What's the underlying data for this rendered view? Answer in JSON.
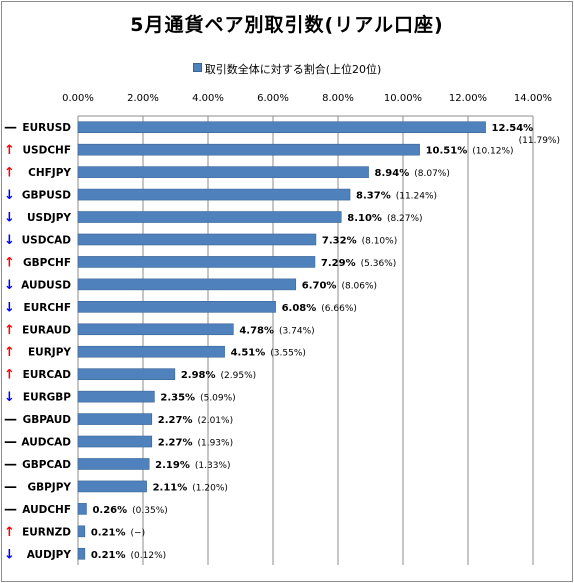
{
  "chart_data": {
    "type": "bar",
    "orientation": "horizontal",
    "title": "5月通貨ペア別取引数(リアル口座)",
    "legend": "取引数全体に対する割合(上位20位)",
    "legend_position": "top",
    "xlim": [
      0,
      14
    ],
    "xticks": [
      "0.00%",
      "2.00%",
      "4.00%",
      "6.00%",
      "8.00%",
      "10.00%",
      "12.00%",
      "14.00%"
    ],
    "grid": true,
    "bar_color": "#4f81bd",
    "categories": [
      "EURUSD",
      "USDCHF",
      "CHFJPY",
      "GBPUSD",
      "USDJPY",
      "USDCAD",
      "GBPCHF",
      "AUDUSD",
      "EURCHF",
      "EURAUD",
      "EURJPY",
      "EURCAD",
      "EURGBP",
      "GBPAUD",
      "AUDCAD",
      "GBPCAD",
      "GBPJPY",
      "AUDCHF",
      "EURNZD",
      "AUDJPY"
    ],
    "values": [
      12.54,
      10.51,
      8.94,
      8.37,
      8.1,
      7.32,
      7.29,
      6.7,
      6.08,
      4.78,
      4.51,
      2.98,
      2.35,
      2.27,
      2.27,
      2.19,
      2.11,
      0.26,
      0.21,
      0.21
    ],
    "value_labels": [
      "12.54%",
      "10.51%",
      "8.94%",
      "8.37%",
      "8.10%",
      "7.32%",
      "7.29%",
      "6.70%",
      "6.08%",
      "4.78%",
      "4.51%",
      "2.98%",
      "2.35%",
      "2.27%",
      "2.27%",
      "2.19%",
      "2.11%",
      "0.26%",
      "0.21%",
      "0.21%"
    ],
    "previous_labels": [
      "(11.79%)",
      "(10.12%)",
      "(8.07%)",
      "(11.24%)",
      "(8.27%)",
      "(8.10%)",
      "(5.36%)",
      "(8.06%)",
      "(6.66%)",
      "(3.74%)",
      "(3.55%)",
      "(2.95%)",
      "(5.09%)",
      "(2.01%)",
      "(1.93%)",
      "(1.33%)",
      "(1.20%)",
      "(0.35%)",
      "(−)",
      "(0.12%)"
    ],
    "trend": [
      "flat",
      "up",
      "up",
      "down",
      "down",
      "down",
      "up",
      "down",
      "down",
      "up",
      "up",
      "up",
      "down",
      "flat",
      "flat",
      "flat",
      "flat",
      "flat",
      "up",
      "down"
    ],
    "trend_symbols": {
      "up": "↑",
      "down": "↓",
      "flat": "—"
    },
    "trend_colors": {
      "up": "#ff0000",
      "down": "#0000ff",
      "flat": "#000000"
    }
  }
}
